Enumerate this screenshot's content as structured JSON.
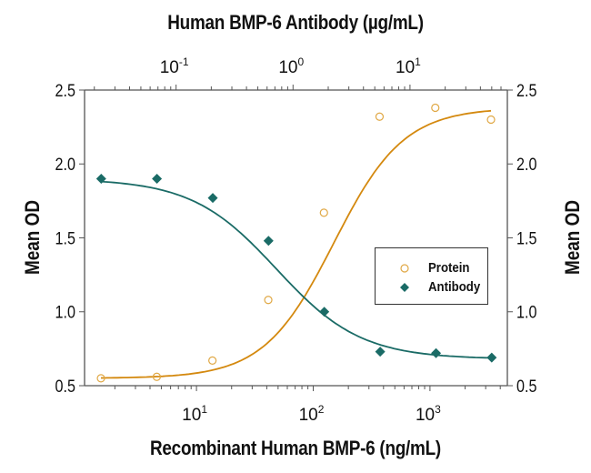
{
  "chart_data": {
    "type": "scatter",
    "title_top": "Human BMP-6 Antibody (µg/mL)",
    "xlabel": "Recombinant Human BMP-6 (ng/mL)",
    "ylabel": "Mean OD",
    "ylabel_right": "Mean OD",
    "ylim": [
      0.5,
      2.5
    ],
    "yticks": [
      "0.5",
      "1.0",
      "1.5",
      "2.0",
      "2.5"
    ],
    "x_bottom": {
      "scale": "log",
      "label": "Recombinant Human BMP-6 (ng/mL)",
      "tick_labels": [
        "10^1",
        "10^2",
        "10^3"
      ],
      "tick_values": [
        10,
        100,
        1000
      ],
      "range": [
        1.1,
        4600
      ]
    },
    "x_top": {
      "scale": "log",
      "label": "Human BMP-6 Antibody (µg/mL)",
      "tick_labels": [
        "10^-1",
        "10^0",
        "10^1"
      ],
      "tick_values": [
        0.1,
        1,
        10
      ],
      "range": [
        0.0165,
        68
      ]
    },
    "grid": false,
    "legend_position": "inside-right",
    "series": [
      {
        "name": "Protein",
        "axis": "bottom",
        "marker": "open-circle",
        "color": "#d4890f",
        "x": [
          1.52,
          4.57,
          13.7,
          41.2,
          123.5,
          370,
          1111,
          3333
        ],
        "y": [
          0.55,
          0.56,
          0.67,
          1.08,
          1.67,
          2.32,
          2.38,
          2.3
        ],
        "fit": {
          "bottom": 0.55,
          "top": 2.38,
          "ec50": 150,
          "hill": 1.45
        }
      },
      {
        "name": "Antibody",
        "axis": "top",
        "marker": "filled-diamond",
        "color": "#1a6b66",
        "x": [
          0.0229,
          0.0686,
          0.206,
          0.617,
          1.85,
          5.56,
          16.7,
          50
        ],
        "y": [
          1.9,
          1.9,
          1.77,
          1.48,
          1.0,
          0.73,
          0.72,
          0.69
        ],
        "fit": {
          "bottom": 0.68,
          "top": 1.9,
          "ec50": 0.72,
          "hill": 1.2
        }
      }
    ]
  },
  "legend": {
    "items": [
      {
        "label": "Protein"
      },
      {
        "label": "Antibody"
      }
    ]
  }
}
